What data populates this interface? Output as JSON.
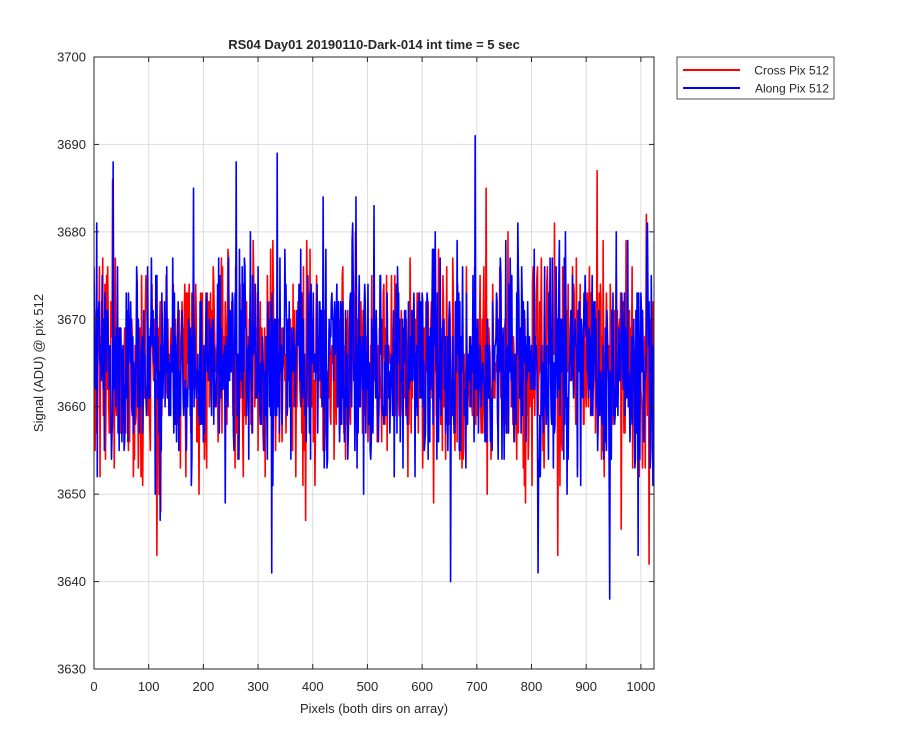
{
  "chart_data": {
    "type": "line",
    "title": "RS04 Day01 20190110-Dark-014 int time = 5 sec",
    "xlabel": "Pixels (both dirs on array)",
    "ylabel": "Signal (ADU) @ pix 512",
    "xlim": [
      0,
      1024
    ],
    "ylim": [
      3630,
      3700
    ],
    "x_ticks": [
      0,
      100,
      200,
      300,
      400,
      500,
      600,
      700,
      800,
      900,
      1000
    ],
    "y_ticks": [
      3630,
      3640,
      3650,
      3660,
      3670,
      3680,
      3690,
      3700
    ],
    "grid": true,
    "legend_position": "outside top-right",
    "noise": {
      "n_points": 1024,
      "mean": 3665,
      "std": 6.2,
      "seed": 512
    },
    "series": [
      {
        "name": "Cross Pix 512",
        "color": "#ff0000",
        "extrema": [
          [
            115,
            3643
          ],
          [
            122,
            3648
          ],
          [
            920,
            3687
          ],
          [
            1015,
            3642
          ],
          [
            1010,
            3682
          ]
        ]
      },
      {
        "name": "Along Pix 512",
        "color": "#0000ff",
        "extrema": [
          [
            35,
            3688
          ],
          [
            260,
            3688
          ],
          [
            335,
            3689
          ],
          [
            697,
            3691
          ],
          [
            325,
            3641
          ],
          [
            652,
            3640
          ],
          [
            812,
            3641
          ],
          [
            943,
            3638
          ],
          [
            995,
            3643
          ]
        ]
      }
    ]
  }
}
